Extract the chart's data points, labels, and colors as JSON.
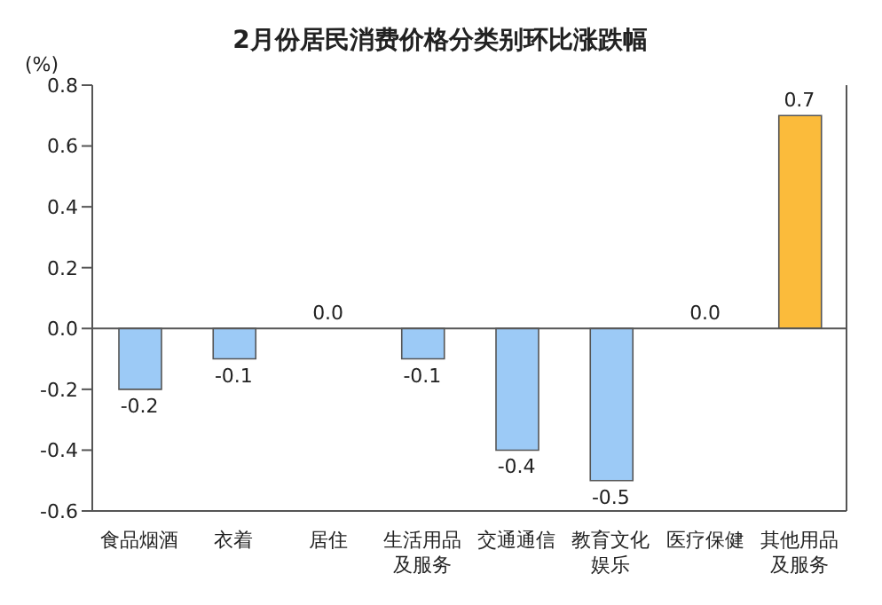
{
  "chart_data": {
    "type": "bar",
    "title": "2月份居民消费价格分类别环比涨跌幅",
    "ylabel": "(%)",
    "categories": [
      "食品烟酒",
      "衣着",
      "居住",
      "生活用品及服务",
      "交通通信",
      "教育文化娱乐",
      "医疗保健",
      "其他用品及服务"
    ],
    "values": [
      -0.2,
      -0.1,
      0,
      -0.1,
      -0.4,
      -0.5,
      0,
      0.7
    ],
    "colors": [
      "#9ccaf6",
      "#9ccaf6",
      "#9ccaf6",
      "#9ccaf6",
      "#9ccaf6",
      "#9ccaf6",
      "#9ccaf6",
      "#fbbb3b"
    ],
    "value_labels": [
      "-0.2",
      "-0.1",
      "0.0",
      "-0.1",
      "-0.4",
      "-0.5",
      "0.0",
      "0.7"
    ],
    "ylim": [
      -0.6,
      0.8
    ],
    "yticks": [
      -0.6,
      -0.4,
      -0.2,
      {
        "value": 0,
        "label": "0.0"
      },
      0.2,
      0.4,
      0.6,
      0.8
    ],
    "ref_lines": [
      {
        "axis": "y",
        "value": 0,
        "color": "#555555"
      }
    ],
    "grid": false,
    "legend": false
  }
}
